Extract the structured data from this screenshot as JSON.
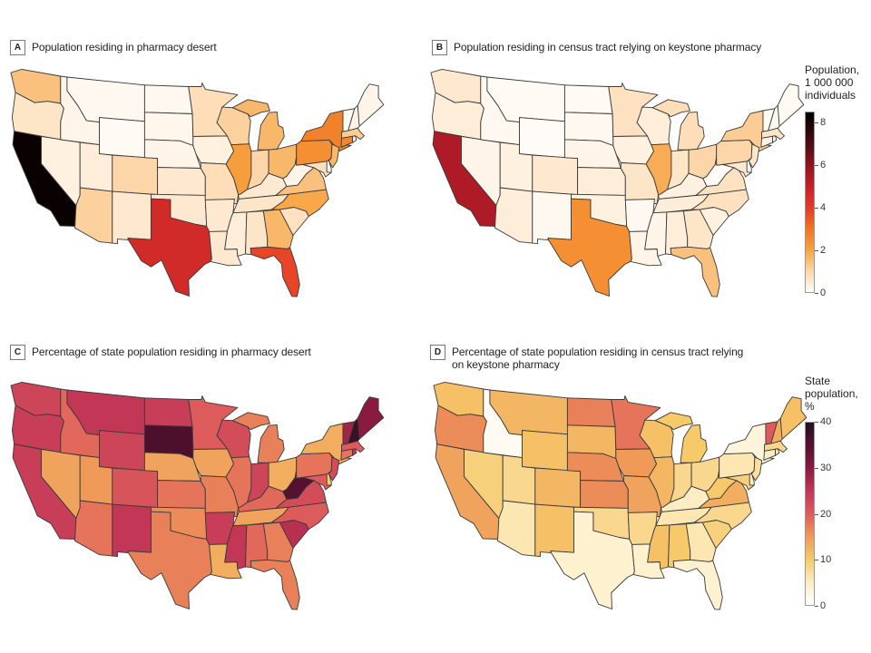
{
  "panels": [
    {
      "letter": "A",
      "title": "Population residing in pharmacy desert"
    },
    {
      "letter": "B",
      "title": "Population residing in census tract relying on keystone pharmacy"
    },
    {
      "letter": "C",
      "title": "Percentage of state population residing in pharmacy desert"
    },
    {
      "letter": "D",
      "title_line1": "Percentage of state population residing in census tract relying",
      "title_line2": "on keystone pharmacy"
    }
  ],
  "legends": [
    {
      "title": [
        "Population,",
        "1 000 000",
        "individuals"
      ],
      "ticks": [
        "0",
        "2",
        "4",
        "6",
        "8"
      ],
      "tick_values": [
        0,
        2,
        4,
        6,
        8
      ],
      "range": [
        0,
        8.5
      ],
      "stops": [
        [
          0,
          "#fffcf8"
        ],
        [
          1,
          "#fcd6a8"
        ],
        [
          2,
          "#f7a240"
        ],
        [
          3,
          "#f07322"
        ],
        [
          4,
          "#e33a28"
        ],
        [
          5,
          "#c4202a"
        ],
        [
          6,
          "#8e1420"
        ],
        [
          7,
          "#4e0c12"
        ],
        [
          8.5,
          "#000000"
        ]
      ]
    },
    {
      "title": [
        "State",
        "population,",
        "%"
      ],
      "ticks": [
        "0",
        "10",
        "20",
        "30",
        "40"
      ],
      "tick_values": [
        0,
        10,
        20,
        30,
        40
      ],
      "range": [
        0,
        40
      ],
      "stops": [
        [
          0,
          "#ffffff"
        ],
        [
          5,
          "#fdedc4"
        ],
        [
          10,
          "#f6c96a"
        ],
        [
          15,
          "#ef9a58"
        ],
        [
          20,
          "#de5b5c"
        ],
        [
          25,
          "#c23656"
        ],
        [
          30,
          "#8a1a40"
        ],
        [
          35,
          "#561030"
        ],
        [
          40,
          "#261020"
        ]
      ]
    }
  ],
  "chart_data": [
    {
      "type": "choropleth",
      "panel": "A",
      "legend": 0,
      "title": "Population residing in pharmacy desert",
      "unit": "Population, 1 000 000 individuals",
      "values": {
        "CA": 8.3,
        "TX": 4.6,
        "FL": 3.8,
        "NY": 2.7,
        "PA": 2.4,
        "IL": 2.1,
        "NC": 1.9,
        "OH": 1.6,
        "MI": 1.6,
        "GA": 1.6,
        "WI": 1.1,
        "WA": 1.4,
        "VA": 1.4,
        "NJ": 1.6,
        "AZ": 1.1,
        "CO": 1.0,
        "IN": 1.0,
        "MN": 0.8,
        "MO": 0.8,
        "TN": 0.6,
        "SC": 0.7,
        "AL": 0.6,
        "KY": 0.5,
        "OR": 0.6,
        "LA": 0.5,
        "OK": 0.5,
        "KS": 0.5,
        "AR": 0.5,
        "MS": 0.4,
        "IA": 0.3,
        "NM": 0.5,
        "UT": 0.4,
        "NV": 0.3,
        "ID": 0.2,
        "MT": 0.1,
        "WY": 0.05,
        "ND": 0.1,
        "SD": 0.15,
        "NE": 0.2,
        "WV": 0.2,
        "ME": 0.2,
        "NH": 0.2,
        "VT": 0.05,
        "MA": 1.2,
        "CT": 2.6,
        "RI": 0.3,
        "DE": 0.1,
        "MD": 0.7
      }
    },
    {
      "type": "choropleth",
      "panel": "B",
      "legend": 0,
      "title": "Population residing in census tract relying on keystone pharmacy",
      "unit": "Population, 1 000 000 individuals",
      "values": {
        "CA": 5.4,
        "TX": 2.4,
        "FL": 1.4,
        "IL": 1.8,
        "NY": 1.2,
        "PA": 1.0,
        "OH": 1.0,
        "MI": 0.8,
        "MN": 0.7,
        "NC": 0.7,
        "VA": 0.7,
        "GA": 0.6,
        "WA": 0.5,
        "CO": 0.5,
        "AZ": 0.4,
        "OR": 0.4,
        "MO": 0.6,
        "IN": 0.6,
        "WI": 0.4,
        "IA": 0.3,
        "KS": 0.4,
        "OK": 0.3,
        "AL": 0.4,
        "SC": 0.3,
        "TN": 0.4,
        "KY": 0.3,
        "NJ": 0.6,
        "MD": 0.5,
        "MA": 0.6,
        "CT": 0.3,
        "UT": 0.3,
        "NV": 0.2,
        "NM": 0.1,
        "ID": 0.1,
        "MT": 0.05,
        "WY": 0.0,
        "ND": 0.05,
        "SD": 0.1,
        "NE": 0.2,
        "AR": 0.1,
        "LA": 0.2,
        "MS": 0.2,
        "WV": 0.05,
        "ME": 0.05,
        "NH": 0.1,
        "VT": 0.05,
        "RI": 0.1,
        "DE": 0.1
      }
    },
    {
      "type": "choropleth",
      "panel": "C",
      "legend": 1,
      "title": "Percentage of state population residing in pharmacy desert",
      "unit": "State population, %",
      "values": {
        "SD": 36,
        "WV": 35,
        "NH": 38,
        "ME": 30,
        "VT": 28,
        "MT": 25,
        "ND": 24,
        "WY": 23,
        "WA": 23,
        "OR": 24,
        "CA": 24,
        "NM": 25,
        "AR": 24,
        "MS": 25,
        "SC": 26,
        "WI": 22,
        "IN": 23,
        "VA": 22,
        "NJ": 22,
        "CO": 21,
        "MN": 20,
        "ID": 19,
        "KS": 18,
        "AZ": 18,
        "TX": 17,
        "OK": 16,
        "MO": 17,
        "IL": 18,
        "MI": 17,
        "AL": 19,
        "GA": 17,
        "FL": 17,
        "NC": 20,
        "KY": 19,
        "PA": 18,
        "MD": 20,
        "NV": 14,
        "UT": 15,
        "NE": 14,
        "IA": 14,
        "OH": 13,
        "NY": 13,
        "TN": 14,
        "LA": 13,
        "MA": 20,
        "CT": 18,
        "RI": 25,
        "DE": 10
      }
    },
    {
      "type": "choropleth",
      "panel": "D",
      "legend": 1,
      "title": "Percentage of state population residing in census tract relying on keystone pharmacy",
      "unit": "State population, %",
      "values": {
        "VT": 20,
        "MN": 18,
        "ND": 17,
        "OR": 16,
        "NE": 16,
        "KS": 16,
        "IA": 15,
        "CA": 14,
        "MO": 14,
        "VA": 13,
        "WA": 11,
        "MT": 12,
        "WY": 11,
        "SD": 12,
        "CO": 12,
        "NM": 11,
        "WI": 11,
        "MI": 10,
        "IL": 12,
        "NH": 13,
        "ME": 11,
        "ID": 1,
        "NV": 9,
        "UT": 8,
        "AZ": 6,
        "TX": 4,
        "LA": 4,
        "FL": 4,
        "OK": 8,
        "AR": 8,
        "MS": 11,
        "AL": 10,
        "GA": 6,
        "SC": 9,
        "NC": 8,
        "TN": 6,
        "KY": 5,
        "IN": 8,
        "OH": 8,
        "WV": 10,
        "PA": 6,
        "NY": 3,
        "NJ": 7,
        "MD": 9,
        "DE": 5,
        "MA": 8,
        "CT": 5,
        "RI": 6
      }
    }
  ]
}
